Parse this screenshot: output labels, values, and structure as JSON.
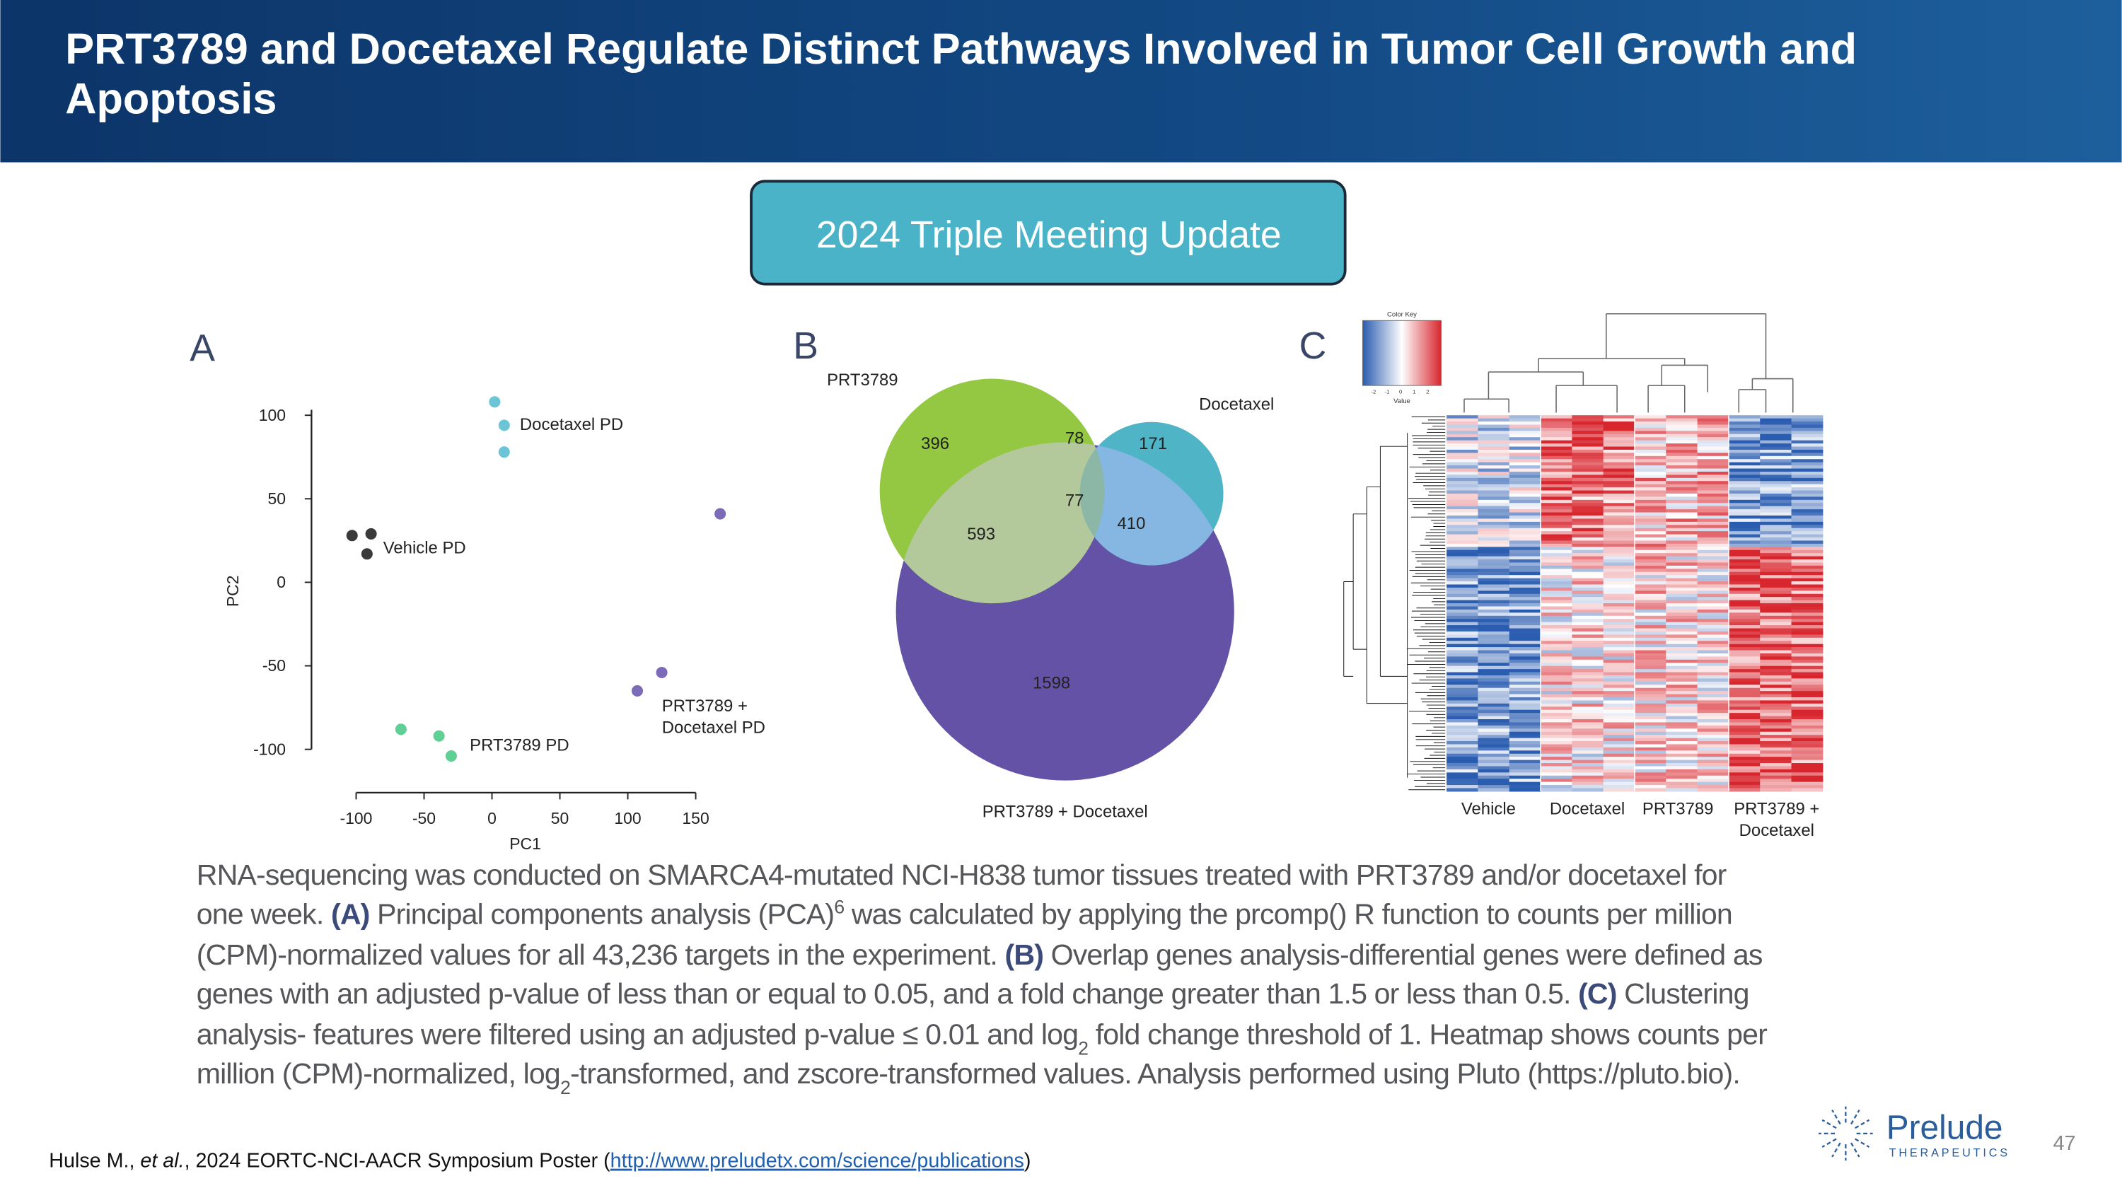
{
  "header": {
    "title": "PRT3789 and Docetaxel Regulate Distinct Pathways Involved in Tumor Cell Growth and Apoptosis"
  },
  "badge": "2024 Triple Meeting Update",
  "panels": [
    "A",
    "B",
    "C"
  ],
  "chart_data": {
    "type": "scatter",
    "xlabel": "PC1",
    "ylabel": "PC2",
    "xlim": [
      -100,
      150
    ],
    "ylim": [
      -100,
      100
    ],
    "xticks": [
      -100,
      -50,
      0,
      50,
      100,
      150
    ],
    "yticks": [
      -100,
      -50,
      0,
      50,
      100
    ],
    "series": [
      {
        "name": "Docetaxel PD",
        "color": "#6cc5d6",
        "x": [
          2,
          9,
          9
        ],
        "values": [
          108,
          94,
          78
        ]
      },
      {
        "name": "Vehicle PD",
        "color": "#3a3a3a",
        "x": [
          -103,
          -89,
          -92
        ],
        "values": [
          28,
          29,
          17
        ]
      },
      {
        "name": "PRT3789 + Docetaxel PD",
        "color": "#7b6bb8",
        "x": [
          168,
          125,
          107
        ],
        "values": [
          41,
          -54,
          -65
        ]
      },
      {
        "name": "PRT3789 PD",
        "color": "#5fcf95",
        "x": [
          -67,
          -39,
          -30
        ],
        "values": [
          -88,
          -92,
          -104
        ]
      }
    ]
  },
  "venn": {
    "sets": [
      "PRT3789",
      "Docetaxel",
      "PRT3789 + Docetaxel"
    ],
    "regions": [
      396,
      78,
      171,
      593,
      77,
      410,
      1598
    ]
  },
  "heatmap": {
    "color_key": {
      "title": "Color Key",
      "label": "Value",
      "ticks": [
        -2,
        -1,
        0,
        1,
        2
      ]
    },
    "columns": [
      "Vehicle",
      "Docetaxel",
      "PRT3789",
      "PRT3789 + Docetaxel"
    ]
  },
  "caption": [
    [
      "RNA-sequencing was conducted on SMARCA4-mutated NCI-H838 tumor tissues treated with PRT3789 and/or docetaxel for"
    ],
    [
      "one week. ",
      "(A)",
      " Principal components analysis (PCA)",
      "6",
      " was calculated by applying the prcomp() R function to counts per million"
    ],
    [
      "(CPM)-normalized values for all 43,236 targets in the experiment. ",
      "(B)",
      " Overlap genes analysis-differential genes were defined as"
    ],
    [
      "genes with an adjusted p-value of less than or equal to 0.05, and a fold change greater than 1.5 or less than 0.5. ",
      "(C)",
      " Clustering"
    ],
    [
      "analysis- features were filtered using an adjusted p-value ≤ 0.01 and log",
      "2",
      " fold change threshold of 1. Heatmap shows counts per"
    ],
    [
      "million (CPM)-normalized, log",
      "2",
      "-transformed, and zscore-transformed values.  Analysis performed using Pluto (https://pluto.bio)."
    ]
  ],
  "footer": {
    "citation": [
      "Hulse M., ",
      "et al.",
      ", 2024 EORTC-NCI-AACR Symposium Poster (",
      "http://www.preludetx.com/science/publications",
      ")"
    ],
    "logo": [
      "Prelude",
      "THERAPEUTICS"
    ],
    "page": "47"
  }
}
